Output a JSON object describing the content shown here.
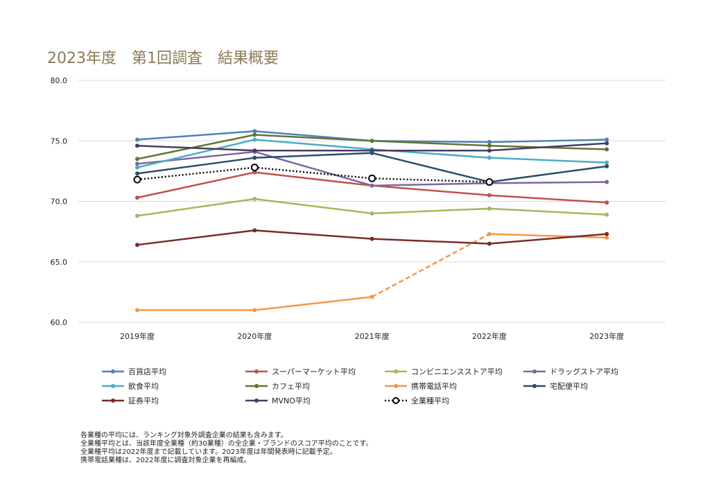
{
  "title": "2023年度　第1回調査　結果概要",
  "chart_data": {
    "type": "line",
    "categories": [
      "2019年度",
      "2020年度",
      "2021年度",
      "2022年度",
      "2023年度"
    ],
    "ylim": [
      60,
      80
    ],
    "yticks": [
      "60.0",
      "65.0",
      "70.0",
      "75.0",
      "80.0"
    ],
    "grid": true,
    "legend_placement": "bottom",
    "series": [
      {
        "name": "百貨店平均",
        "color": "#4f81bd",
        "values": [
          75.1,
          75.8,
          75.0,
          74.9,
          75.1
        ]
      },
      {
        "name": "スーパーマーケット平均",
        "color": "#c0504d",
        "values": [
          70.3,
          72.4,
          71.3,
          70.5,
          69.9
        ]
      },
      {
        "name": "コンビニエンスストア平均",
        "color": "#9bbb59",
        "values": [
          68.8,
          70.2,
          69.0,
          69.4,
          68.9
        ]
      },
      {
        "name": "ドラッグストア平均",
        "color": "#8064a2",
        "values": [
          73.1,
          74.1,
          71.3,
          71.5,
          71.6
        ]
      },
      {
        "name": "飲食平均",
        "color": "#4bacc6",
        "values": [
          72.8,
          75.1,
          74.3,
          73.6,
          73.2
        ]
      },
      {
        "name": "カフェ平均",
        "color": "#5f7530",
        "values": [
          73.5,
          75.5,
          75.0,
          74.6,
          74.3
        ]
      },
      {
        "name": "携帯電話平均",
        "color": "#f79646",
        "values": [
          61.0,
          61.0,
          62.1,
          67.3,
          67.0
        ],
        "dashed_from": "2021年度"
      },
      {
        "name": "宅配便平均",
        "color": "#2c4d6b",
        "values": [
          72.3,
          73.6,
          74.0,
          71.6,
          72.9
        ]
      },
      {
        "name": "証券平均",
        "color": "#772c2a",
        "values": [
          66.4,
          67.6,
          66.9,
          66.5,
          67.3
        ]
      },
      {
        "name": "MVNO平均",
        "color": "#4a3b62",
        "values": [
          74.6,
          74.2,
          74.2,
          74.2,
          74.8
        ]
      },
      {
        "name": "全業種平均",
        "color": "#000000",
        "values": [
          71.8,
          72.8,
          71.9,
          71.6,
          null
        ],
        "style": "dotted-open-marker"
      }
    ]
  },
  "notes": [
    "各業種の平均には、ランキング対象外調査企業の結果も含みます。",
    "全業種平均とは、当該年度全業種（約30業種）の全企業・ブランドのスコア平均のことです。",
    "全業種平均は2022年度まで記載しています。2023年度は年間発表時に記載予定。",
    "携帯電話業種は、2022年度に調査対象企業を再編成。"
  ]
}
